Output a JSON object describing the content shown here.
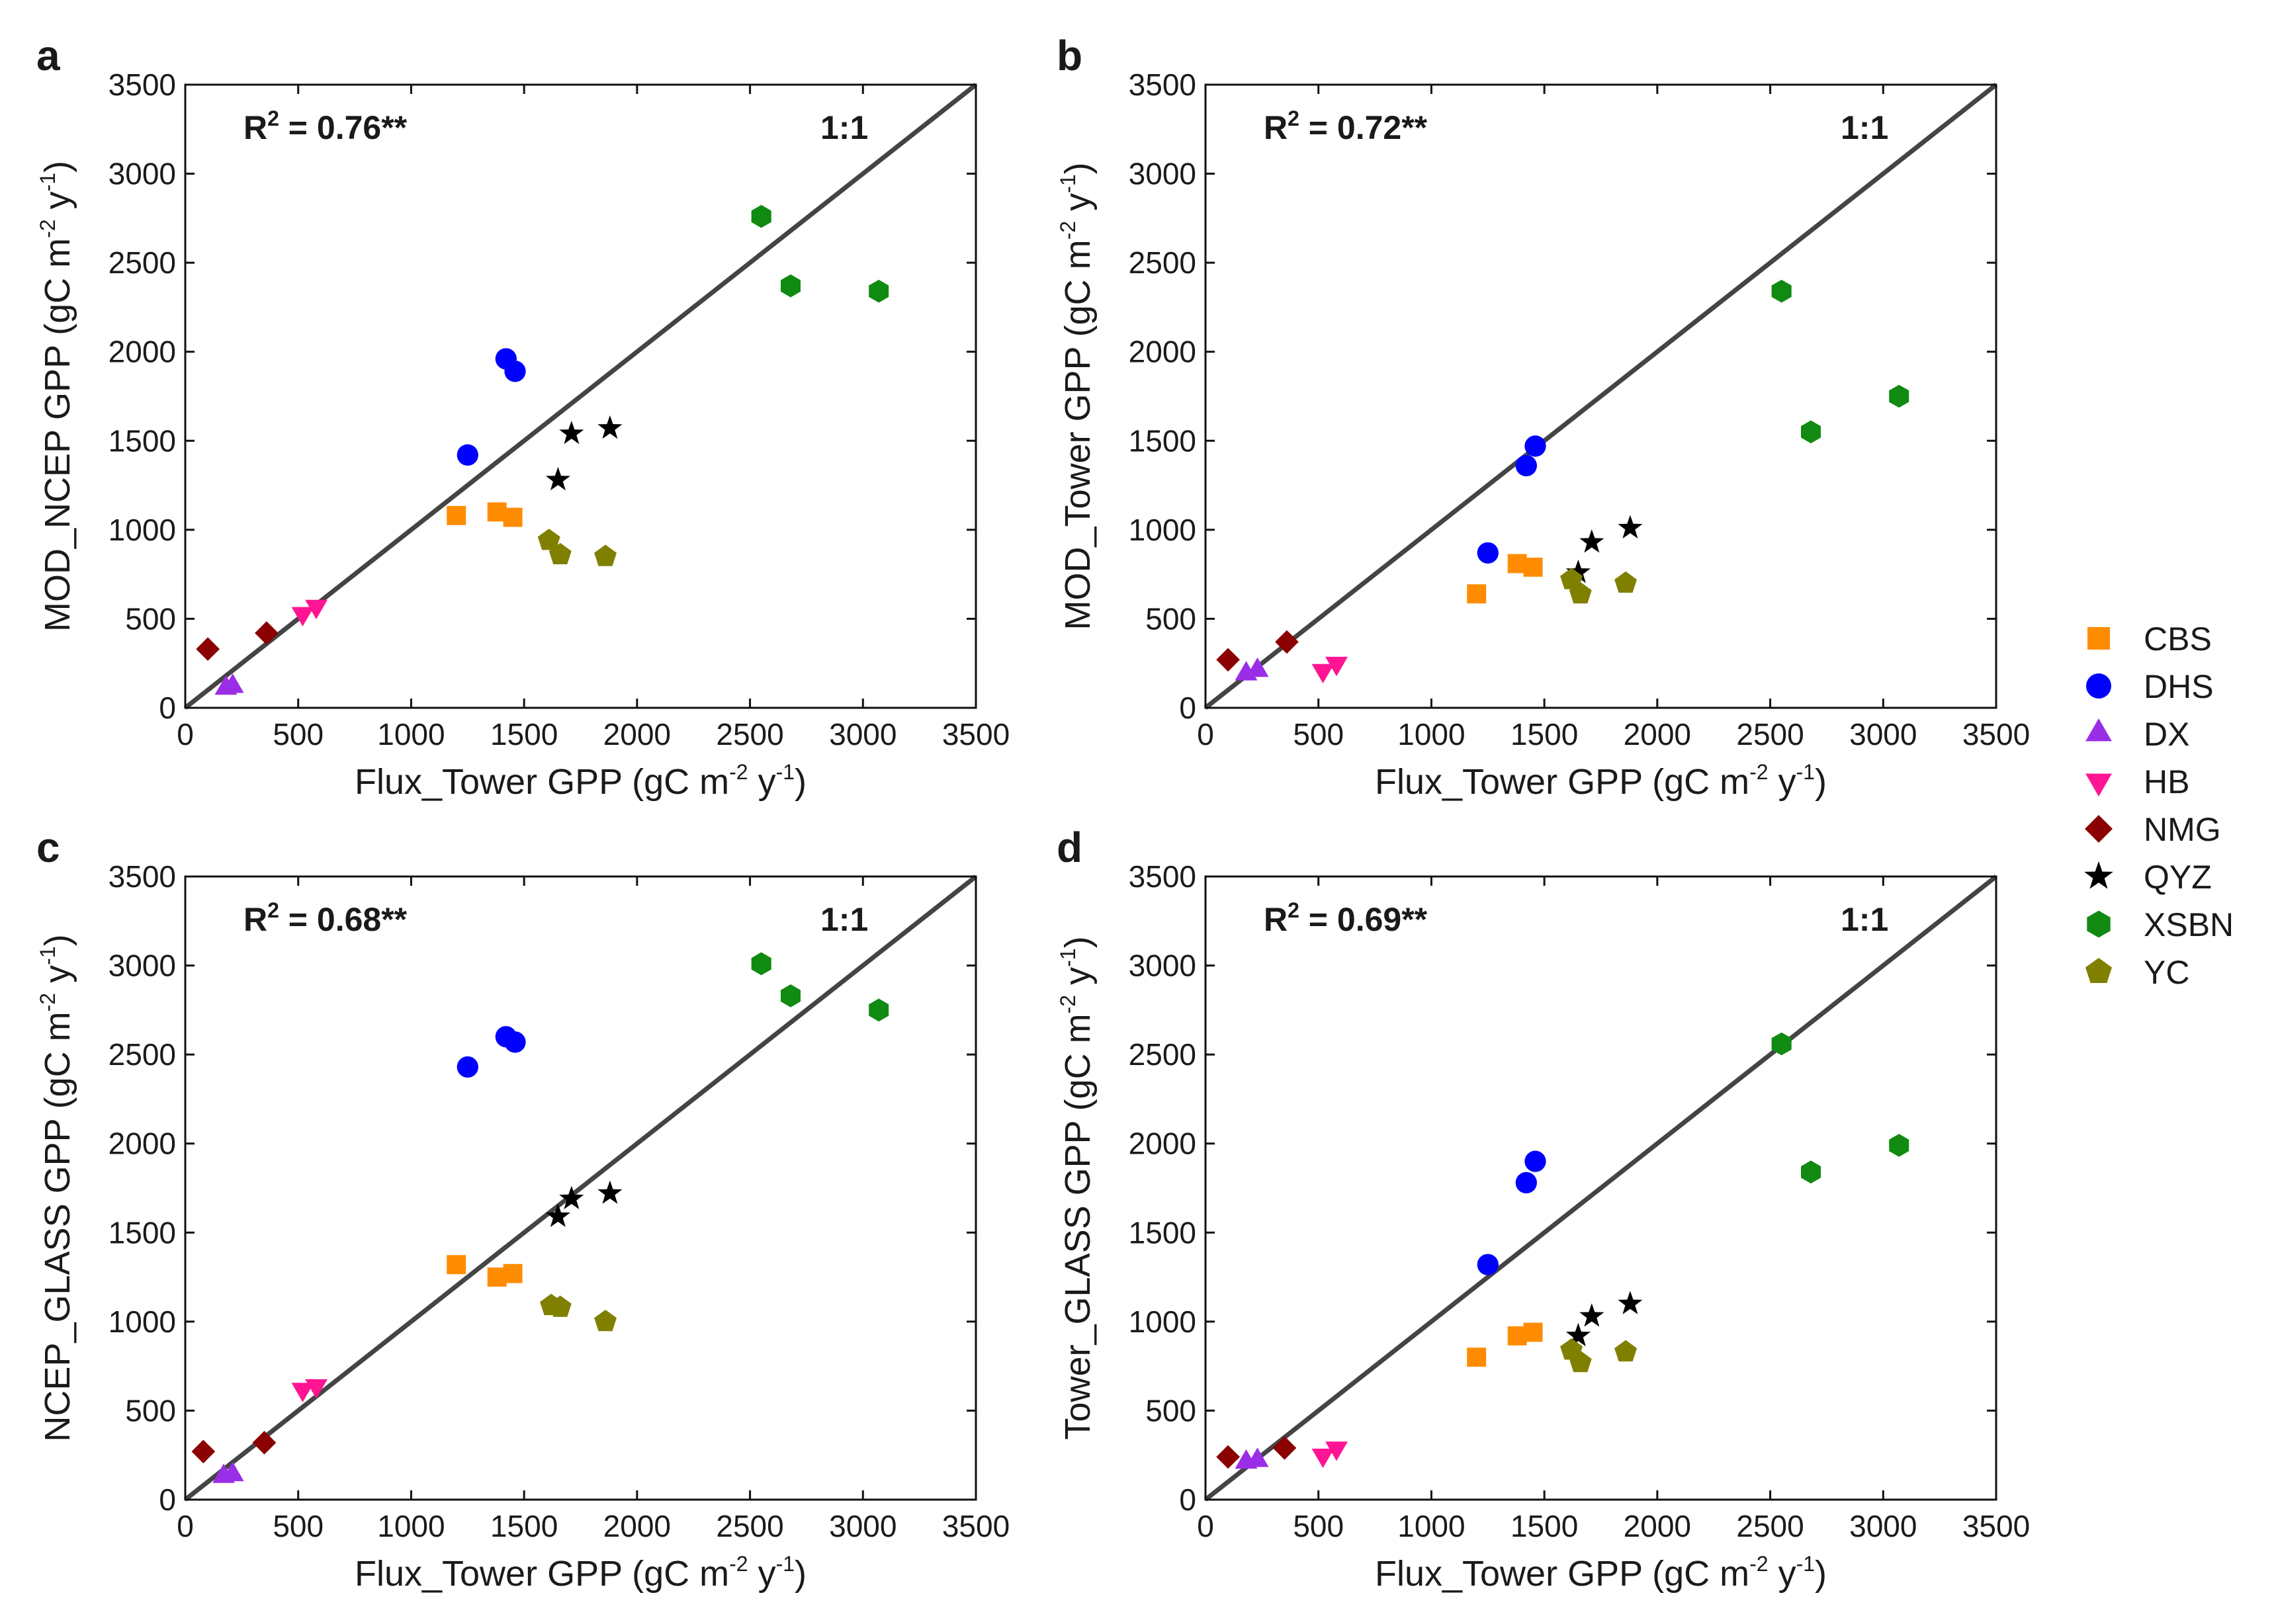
{
  "chart_data": [
    {
      "panel": "a",
      "type": "scatter",
      "r2_label": "R",
      "r2_value": " = 0.76**",
      "one_to_one_label": "1:1",
      "xlabel": "Flux_Tower GPP (gC m",
      "ylabel": "MOD_NCEP GPP (gC m",
      "unit_exp1": "-2",
      "unit_mid": " y",
      "unit_exp2": "-1",
      "unit_close": ")",
      "xlim": [
        0,
        3500
      ],
      "ylim": [
        0,
        3500
      ],
      "xticks": [
        "0",
        "500",
        "1000",
        "1500",
        "2000",
        "2500",
        "3000",
        "3500"
      ],
      "yticks": [
        "0",
        "500",
        "1000",
        "1500",
        "2000",
        "2500",
        "3000",
        "3500"
      ],
      "series": [
        {
          "name": "CBS",
          "points": [
            [
              1200,
              1080
            ],
            [
              1380,
              1100
            ],
            [
              1450,
              1070
            ]
          ]
        },
        {
          "name": "DHS",
          "points": [
            [
              1250,
              1420
            ],
            [
              1420,
              1960
            ],
            [
              1460,
              1890
            ]
          ]
        },
        {
          "name": "DX",
          "points": [
            [
              180,
              110
            ],
            [
              210,
              120
            ]
          ]
        },
        {
          "name": "HB",
          "points": [
            [
              520,
              530
            ],
            [
              580,
              570
            ]
          ]
        },
        {
          "name": "NMG",
          "points": [
            [
              100,
              330
            ],
            [
              360,
              420
            ]
          ]
        },
        {
          "name": "QYZ",
          "points": [
            [
              1650,
              1280
            ],
            [
              1710,
              1540
            ],
            [
              1880,
              1570
            ]
          ]
        },
        {
          "name": "XSBN",
          "points": [
            [
              2550,
              2760
            ],
            [
              2680,
              2370
            ],
            [
              3070,
              2340
            ]
          ]
        },
        {
          "name": "YC",
          "points": [
            [
              1610,
              940
            ],
            [
              1660,
              860
            ],
            [
              1860,
              850
            ]
          ]
        }
      ]
    },
    {
      "panel": "b",
      "type": "scatter",
      "r2_label": "R",
      "r2_value": " = 0.72**",
      "one_to_one_label": "1:1",
      "xlabel": "Flux_Tower GPP (gC m",
      "ylabel": "MOD_Tower GPP (gC m",
      "unit_exp1": "-2",
      "unit_mid": " y",
      "unit_exp2": "-1",
      "unit_close": ")",
      "xlim": [
        0,
        3500
      ],
      "ylim": [
        0,
        3500
      ],
      "xticks": [
        "0",
        "500",
        "1000",
        "1500",
        "2000",
        "2500",
        "3000",
        "3500"
      ],
      "yticks": [
        "0",
        "500",
        "1000",
        "1500",
        "2000",
        "2500",
        "3000",
        "3500"
      ],
      "series": [
        {
          "name": "CBS",
          "points": [
            [
              1200,
              640
            ],
            [
              1380,
              810
            ],
            [
              1450,
              790
            ]
          ]
        },
        {
          "name": "DHS",
          "points": [
            [
              1250,
              870
            ],
            [
              1420,
              1360
            ],
            [
              1460,
              1470
            ]
          ]
        },
        {
          "name": "DX",
          "points": [
            [
              180,
              190
            ],
            [
              230,
              210
            ]
          ]
        },
        {
          "name": "HB",
          "points": [
            [
              520,
              210
            ],
            [
              580,
              250
            ]
          ]
        },
        {
          "name": "NMG",
          "points": [
            [
              100,
              270
            ],
            [
              360,
              370
            ]
          ]
        },
        {
          "name": "QYZ",
          "points": [
            [
              1650,
              760
            ],
            [
              1710,
              930
            ],
            [
              1880,
              1010
            ]
          ]
        },
        {
          "name": "XSBN",
          "points": [
            [
              2550,
              2340
            ],
            [
              2680,
              1550
            ],
            [
              3070,
              1750
            ]
          ]
        },
        {
          "name": "YC",
          "points": [
            [
              1620,
              720
            ],
            [
              1660,
              640
            ],
            [
              1860,
              700
            ]
          ]
        }
      ]
    },
    {
      "panel": "c",
      "type": "scatter",
      "r2_label": "R",
      "r2_value": " = 0.68**",
      "one_to_one_label": "1:1",
      "xlabel": "Flux_Tower GPP (gC m",
      "ylabel": "NCEP_GLASS GPP (gC m",
      "unit_exp1": "-2",
      "unit_mid": " y",
      "unit_exp2": "-1",
      "unit_close": ")",
      "xlim": [
        0,
        3500
      ],
      "ylim": [
        0,
        3500
      ],
      "xticks": [
        "0",
        "500",
        "1000",
        "1500",
        "2000",
        "2500",
        "3000",
        "3500"
      ],
      "yticks": [
        "0",
        "500",
        "1000",
        "1500",
        "2000",
        "2500",
        "3000",
        "3500"
      ],
      "series": [
        {
          "name": "CBS",
          "points": [
            [
              1200,
              1320
            ],
            [
              1380,
              1250
            ],
            [
              1450,
              1270
            ]
          ]
        },
        {
          "name": "DHS",
          "points": [
            [
              1250,
              2430
            ],
            [
              1420,
              2600
            ],
            [
              1460,
              2570
            ]
          ]
        },
        {
          "name": "DX",
          "points": [
            [
              170,
              130
            ],
            [
              210,
              140
            ]
          ]
        },
        {
          "name": "HB",
          "points": [
            [
              520,
              620
            ],
            [
              580,
              640
            ]
          ]
        },
        {
          "name": "NMG",
          "points": [
            [
              80,
              270
            ],
            [
              350,
              320
            ]
          ]
        },
        {
          "name": "QYZ",
          "points": [
            [
              1650,
              1590
            ],
            [
              1710,
              1690
            ],
            [
              1880,
              1720
            ]
          ]
        },
        {
          "name": "XSBN",
          "points": [
            [
              2550,
              3010
            ],
            [
              2680,
              2830
            ],
            [
              3070,
              2750
            ]
          ]
        },
        {
          "name": "YC",
          "points": [
            [
              1620,
              1090
            ],
            [
              1660,
              1080
            ],
            [
              1860,
              1000
            ]
          ]
        }
      ]
    },
    {
      "panel": "d",
      "type": "scatter",
      "r2_label": "R",
      "r2_value": " = 0.69**",
      "one_to_one_label": "1:1",
      "xlabel": "Flux_Tower GPP (gC m",
      "ylabel": "Tower_GLASS GPP (gC m",
      "unit_exp1": "-2",
      "unit_mid": " y",
      "unit_exp2": "-1",
      "unit_close": ")",
      "xlim": [
        0,
        3500
      ],
      "ylim": [
        0,
        3500
      ],
      "xticks": [
        "0",
        "500",
        "1000",
        "1500",
        "2000",
        "2500",
        "3000",
        "3500"
      ],
      "yticks": [
        "0",
        "500",
        "1000",
        "1500",
        "2000",
        "2500",
        "3000",
        "3500"
      ],
      "series": [
        {
          "name": "CBS",
          "points": [
            [
              1200,
              800
            ],
            [
              1380,
              920
            ],
            [
              1450,
              940
            ]
          ]
        },
        {
          "name": "DHS",
          "points": [
            [
              1250,
              1320
            ],
            [
              1420,
              1780
            ],
            [
              1460,
              1900
            ]
          ]
        },
        {
          "name": "DX",
          "points": [
            [
              180,
              210
            ],
            [
              230,
              220
            ]
          ]
        },
        {
          "name": "HB",
          "points": [
            [
              520,
              250
            ],
            [
              580,
              290
            ]
          ]
        },
        {
          "name": "NMG",
          "points": [
            [
              100,
              240
            ],
            [
              350,
              290
            ]
          ]
        },
        {
          "name": "QYZ",
          "points": [
            [
              1650,
              920
            ],
            [
              1710,
              1030
            ],
            [
              1880,
              1100
            ]
          ]
        },
        {
          "name": "XSBN",
          "points": [
            [
              2550,
              2560
            ],
            [
              2680,
              1840
            ],
            [
              3070,
              1990
            ]
          ]
        },
        {
          "name": "YC",
          "points": [
            [
              1620,
              840
            ],
            [
              1660,
              770
            ],
            [
              1860,
              830
            ]
          ]
        }
      ]
    }
  ],
  "legend": [
    {
      "name": "CBS",
      "color": "#ff8c00",
      "marker": "square"
    },
    {
      "name": "DHS",
      "color": "#0000ff",
      "marker": "circle"
    },
    {
      "name": "DX",
      "color": "#9a2ee6",
      "marker": "triangle-up"
    },
    {
      "name": "HB",
      "color": "#ff1493",
      "marker": "triangle-down"
    },
    {
      "name": "NMG",
      "color": "#8b0000",
      "marker": "diamond"
    },
    {
      "name": "QYZ",
      "color": "#000000",
      "marker": "star"
    },
    {
      "name": "XSBN",
      "color": "#118a11",
      "marker": "hexagon"
    },
    {
      "name": "YC",
      "color": "#808000",
      "marker": "pentagon"
    }
  ]
}
